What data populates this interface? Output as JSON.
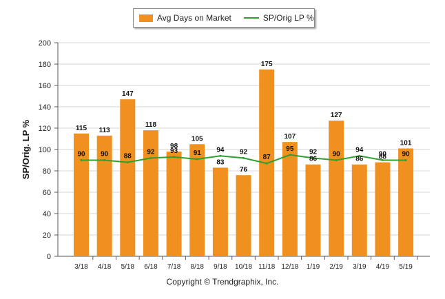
{
  "legend": {
    "bar_label": "Avg Days on Market",
    "line_label": "SP/Orig LP %"
  },
  "footer": {
    "copyright": "Copyright © Trendgraphix, Inc."
  },
  "colors": {
    "bar": "#f0901e",
    "line": "#2ea02e",
    "grid": "#d4d4d4",
    "axis": "#555555"
  },
  "chart_data": {
    "type": "bar",
    "categories": [
      "3/18",
      "4/18",
      "5/18",
      "6/18",
      "7/18",
      "8/18",
      "9/18",
      "10/18",
      "11/18",
      "12/18",
      "1/19",
      "2/19",
      "3/19",
      "4/19",
      "5/19"
    ],
    "series": [
      {
        "name": "Avg Days on Market",
        "type": "bar",
        "values": [
          115,
          113,
          147,
          118,
          98,
          105,
          83,
          76,
          175,
          107,
          86,
          127,
          86,
          88,
          101
        ]
      },
      {
        "name": "SP/Orig LP %",
        "type": "line",
        "values": [
          90,
          90,
          88,
          92,
          93,
          91,
          94,
          92,
          87,
          95,
          92,
          90,
          94,
          90,
          90
        ]
      }
    ],
    "ylabel": "SP/Orig. LP %",
    "ylim": [
      0,
      200
    ],
    "yticks": [
      0,
      20,
      40,
      60,
      80,
      100,
      120,
      140,
      160,
      180,
      200
    ],
    "grid": true,
    "legend_position": "top"
  }
}
